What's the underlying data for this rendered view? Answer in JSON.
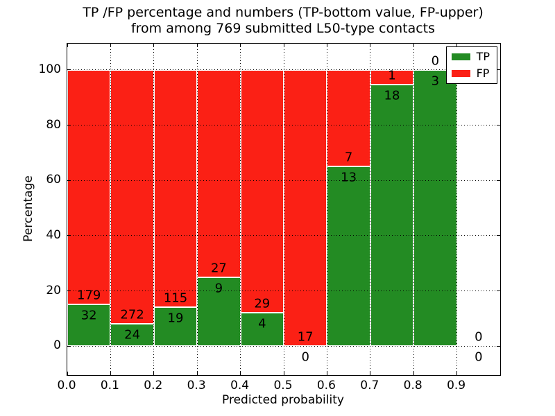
{
  "chart_data": {
    "type": "bar",
    "stacked": true,
    "title_line1": "TP /FP percentage and numbers (TP-bottom value, FP-upper)",
    "title_line2": "from among 769 submitted L50-type contacts",
    "xlabel": "Predicted probability",
    "ylabel": "Percentage",
    "total_contacts": 769,
    "x_tick_labels": [
      "0.0",
      "0.1",
      "0.2",
      "0.3",
      "0.4",
      "0.5",
      "0.6",
      "0.7",
      "0.8",
      "0.9"
    ],
    "y_tick_values": [
      0,
      20,
      40,
      60,
      80,
      100
    ],
    "xlim": [
      0.0,
      1.0
    ],
    "ylim": [
      -10.5,
      109.5
    ],
    "bin_width": 0.1,
    "grid": {
      "style": "dotted",
      "color": "#000000",
      "axisbelow": false
    },
    "colors": {
      "tp": "#238b23",
      "fp": "#fb2015",
      "bar_edge": "#ffffff"
    },
    "legend": {
      "position": "upper-right",
      "entries": [
        {
          "label": "TP",
          "color": "#238b23"
        },
        {
          "label": "FP",
          "color": "#fb2015"
        }
      ]
    },
    "bins": [
      {
        "x_start": 0.0,
        "x_end": 0.1,
        "tp_count": 32,
        "fp_count": 179,
        "tp_pct": 15.17
      },
      {
        "x_start": 0.1,
        "x_end": 0.2,
        "tp_count": 24,
        "fp_count": 272,
        "tp_pct": 8.11
      },
      {
        "x_start": 0.2,
        "x_end": 0.3,
        "tp_count": 19,
        "fp_count": 115,
        "tp_pct": 14.18
      },
      {
        "x_start": 0.3,
        "x_end": 0.4,
        "tp_count": 9,
        "fp_count": 27,
        "tp_pct": 25.0
      },
      {
        "x_start": 0.4,
        "x_end": 0.5,
        "tp_count": 4,
        "fp_count": 29,
        "tp_pct": 12.12
      },
      {
        "x_start": 0.5,
        "x_end": 0.6,
        "tp_count": 0,
        "fp_count": 17,
        "tp_pct": 0.0
      },
      {
        "x_start": 0.6,
        "x_end": 0.7,
        "tp_count": 13,
        "fp_count": 7,
        "tp_pct": 65.0
      },
      {
        "x_start": 0.7,
        "x_end": 0.8,
        "tp_count": 18,
        "fp_count": 1,
        "tp_pct": 94.74
      },
      {
        "x_start": 0.8,
        "x_end": 0.9,
        "tp_count": 3,
        "fp_count": 0,
        "tp_pct": 100.0
      },
      {
        "x_start": 0.9,
        "x_end": 1.0,
        "tp_count": 0,
        "fp_count": 0,
        "tp_pct": null
      }
    ]
  }
}
